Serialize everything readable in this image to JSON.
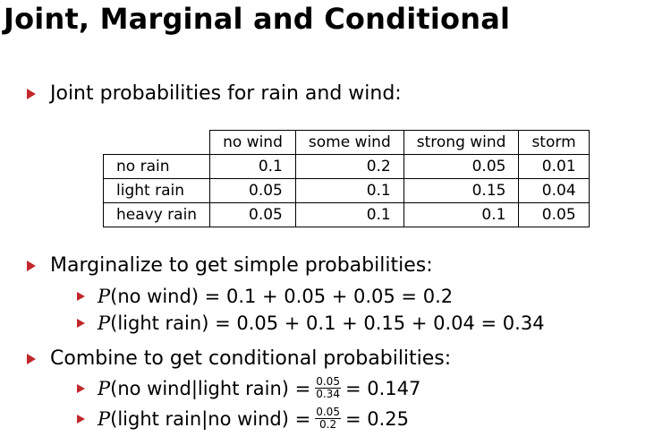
{
  "title": "Joint, Marginal and Conditional",
  "bullets": {
    "joint": "Joint probabilities for rain and wind:",
    "marginalize": "Marginalize to get simple probabilities:",
    "combine": "Combine to get conditional probabilities:"
  },
  "table": {
    "columns": [
      "no wind",
      "some wind",
      "strong wind",
      "storm"
    ],
    "rows": [
      {
        "label": "no rain",
        "values": [
          "0.1",
          "0.2",
          "0.05",
          "0.01"
        ]
      },
      {
        "label": "light rain",
        "values": [
          "0.05",
          "0.1",
          "0.15",
          "0.04"
        ]
      },
      {
        "label": "heavy rain",
        "values": [
          "0.05",
          "0.1",
          "0.1",
          "0.05"
        ]
      }
    ]
  },
  "marginals": [
    {
      "p": "P",
      "rest": "(no wind) = 0.1 + 0.05 + 0.05 = 0.2"
    },
    {
      "p": "P",
      "rest": "(light rain) = 0.05 + 0.1 + 0.15 + 0.04 = 0.34"
    }
  ],
  "conditionals": [
    {
      "p": "P",
      "lhs": "(no wind|light rain) =",
      "num": "0.05",
      "den": "0.34",
      "result": "= 0.147"
    },
    {
      "p": "P",
      "lhs": "(light rain|no wind) =",
      "num": "0.05",
      "den": "0.2",
      "result": "= 0.25"
    }
  ],
  "colors": {
    "bullet": "#c0282c"
  },
  "icons": {
    "bullet": "triangle-bullet-icon"
  }
}
